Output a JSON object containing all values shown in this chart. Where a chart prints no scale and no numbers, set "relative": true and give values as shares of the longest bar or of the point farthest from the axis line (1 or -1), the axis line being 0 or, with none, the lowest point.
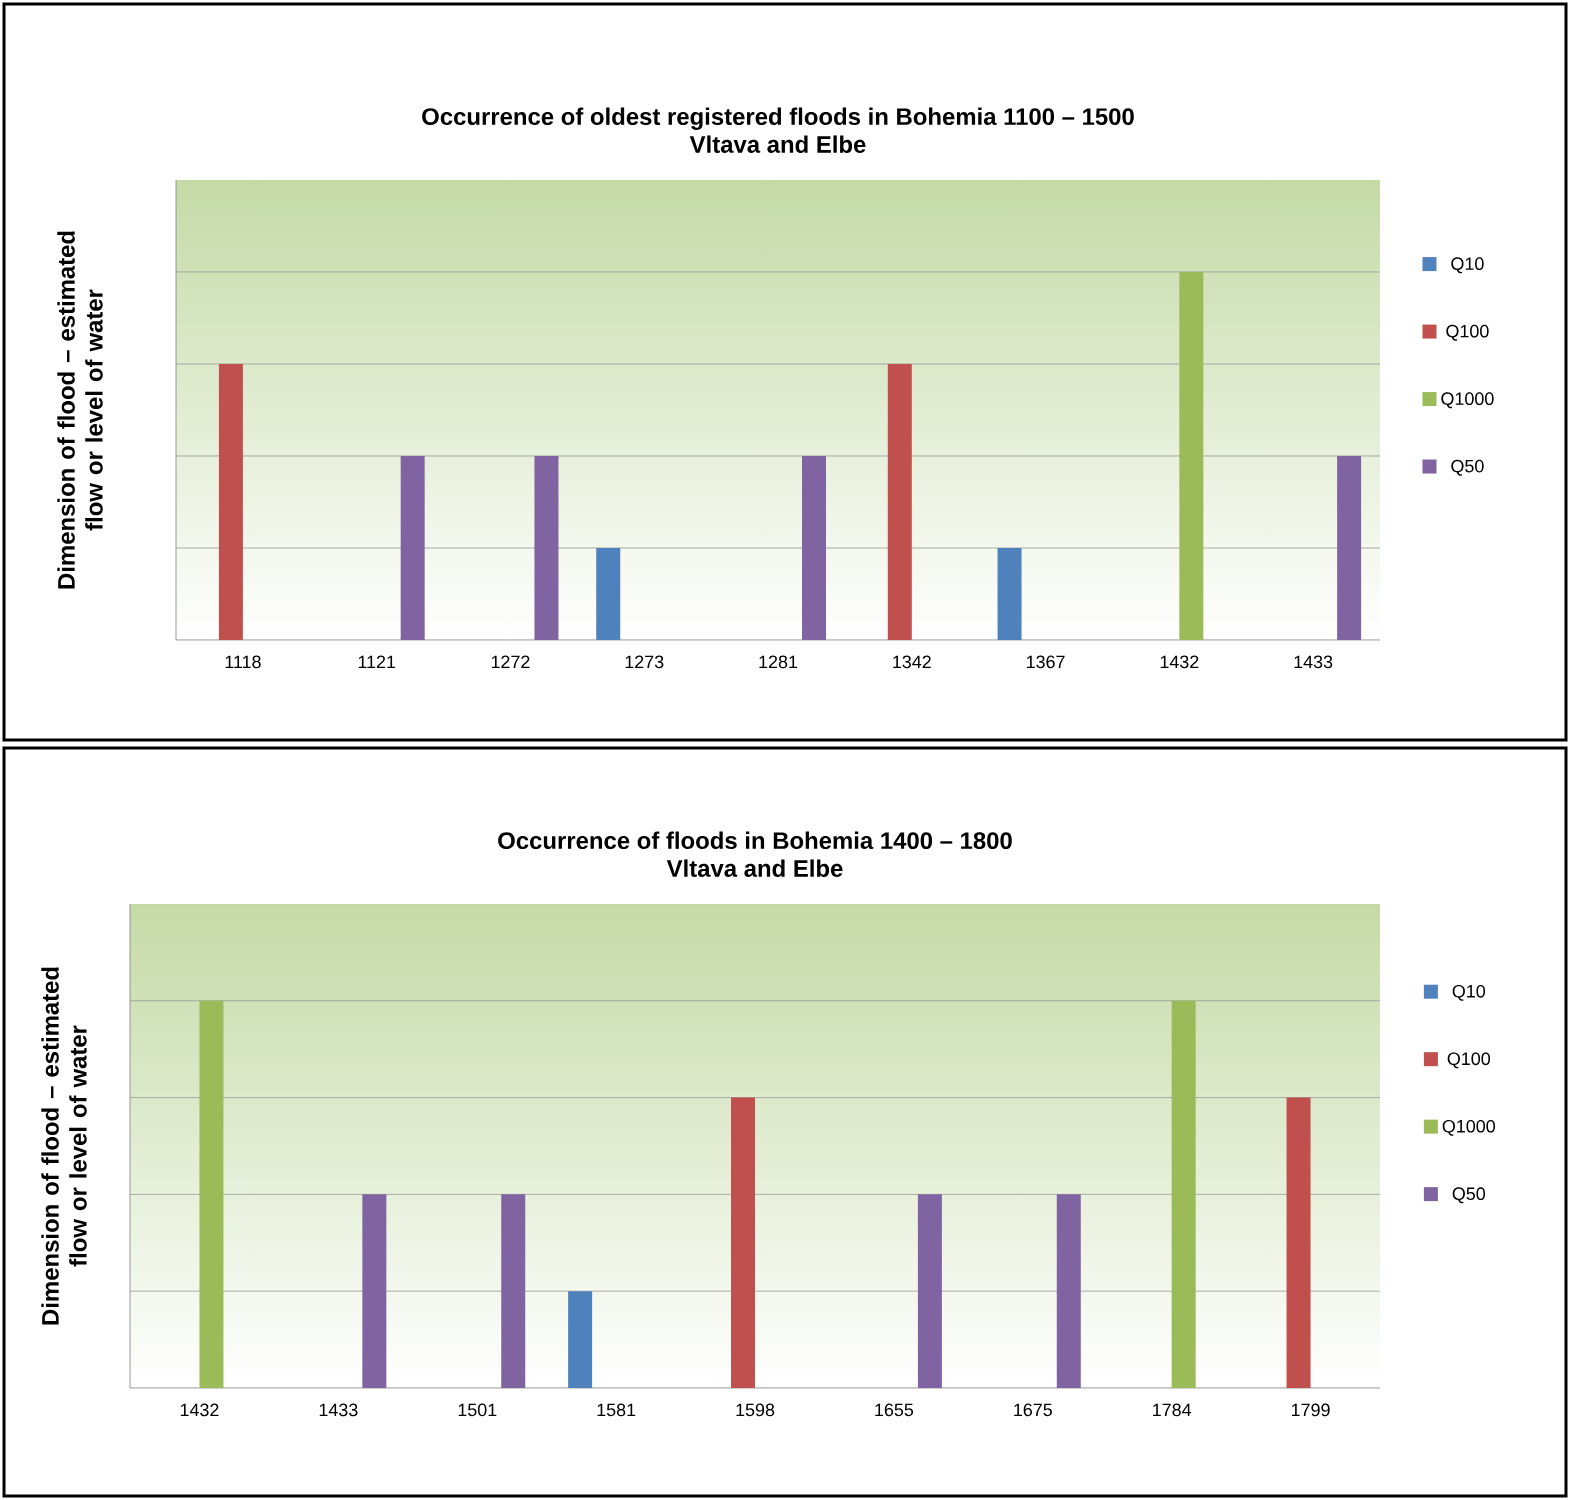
{
  "chart_data": [
    {
      "type": "bar",
      "title": "Occurrence of oldest registered floods in Bohemia 1100 – 1500",
      "subtitle": "Vltava and Elbe",
      "ylabel": "Dimension of flood – estimated flow or level of water",
      "categories": [
        "1118",
        "1121",
        "1272",
        "1273",
        "1281",
        "1342",
        "1367",
        "1432",
        "1433"
      ],
      "relative": true,
      "grid": "y",
      "legend": "right",
      "series": [
        {
          "name": "Q10",
          "color": "#4f81bd",
          "values": [
            null,
            null,
            null,
            0.25,
            null,
            null,
            0.25,
            null,
            null
          ]
        },
        {
          "name": "Q100",
          "color": "#c0504d",
          "values": [
            0.75,
            null,
            null,
            null,
            null,
            0.75,
            null,
            null,
            null
          ]
        },
        {
          "name": "Q1000",
          "color": "#9bbb59",
          "values": [
            null,
            null,
            null,
            null,
            null,
            null,
            null,
            1,
            null
          ]
        },
        {
          "name": "Q50",
          "color": "#8064a2",
          "values": [
            null,
            0.5,
            0.5,
            null,
            0.5,
            null,
            null,
            null,
            0.5
          ]
        }
      ]
    },
    {
      "type": "bar",
      "title": "Occurrence of floods in Bohemia 1400 – 1800",
      "subtitle": "Vltava and Elbe",
      "ylabel": "Dimension of flood – estimated flow or level of water",
      "categories": [
        "1432",
        "1433",
        "1501",
        "1581",
        "1598",
        "1655",
        "1675",
        "1784",
        "1799"
      ],
      "relative": true,
      "grid": "y",
      "legend": "right",
      "series": [
        {
          "name": "Q10",
          "color": "#4f81bd",
          "values": [
            null,
            null,
            null,
            0.25,
            null,
            null,
            null,
            null,
            null
          ]
        },
        {
          "name": "Q100",
          "color": "#c0504d",
          "values": [
            null,
            null,
            null,
            null,
            0.75,
            null,
            null,
            null,
            0.75
          ]
        },
        {
          "name": "Q1000",
          "color": "#9bbb59",
          "values": [
            1,
            null,
            null,
            null,
            null,
            null,
            null,
            1,
            null
          ]
        },
        {
          "name": "Q50",
          "color": "#8064a2",
          "values": [
            null,
            0.5,
            0.5,
            null,
            null,
            0.5,
            0.5,
            null,
            null
          ]
        }
      ]
    }
  ]
}
